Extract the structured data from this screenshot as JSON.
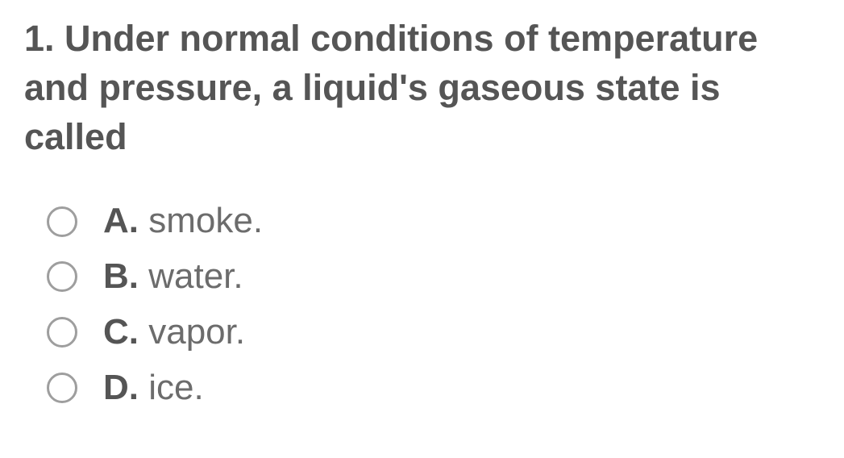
{
  "question": {
    "number": "1.",
    "text": " Under normal conditions of temperature and pressure, a liquid's gaseous state is called",
    "title_fontsize": 45,
    "title_color": "#555555",
    "background_color": "#ffffff"
  },
  "options": [
    {
      "letter": "A.",
      "text": " smoke."
    },
    {
      "letter": "B.",
      "text": " water."
    },
    {
      "letter": "C.",
      "text": " vapor."
    },
    {
      "letter": "D.",
      "text": " ice."
    }
  ],
  "option_style": {
    "fontsize": 44,
    "letter_color": "#555555",
    "text_color": "#6c6c6c",
    "radio_border_color": "#9e9e9e",
    "radio_size": 38
  }
}
